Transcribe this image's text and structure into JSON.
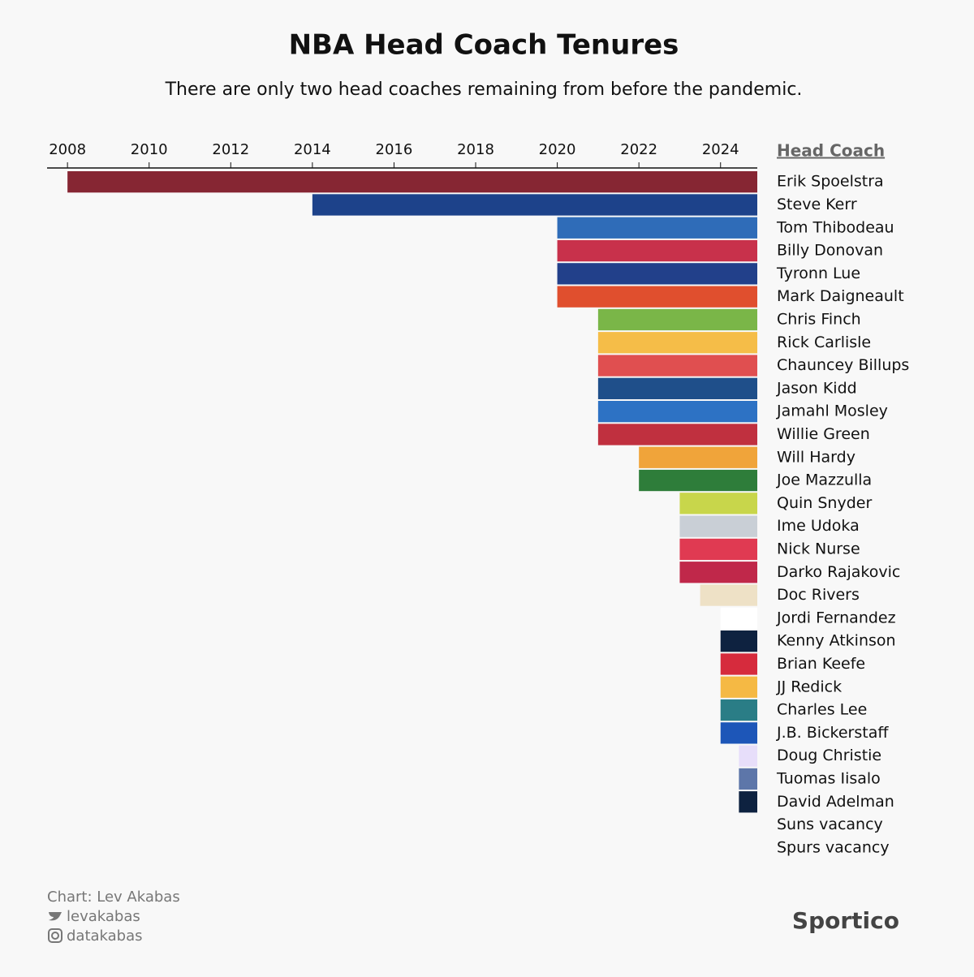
{
  "chart_data": {
    "type": "floating-bar",
    "title": "NBA Head Coach Tenures",
    "subtitle": "There are only two head coaches remaining from before the pandemic.",
    "legend_title": "Head Coach",
    "categories": [
      "Erik Spoelstra",
      "Steve Kerr",
      "Tom Thibodeau",
      "Billy Donovan",
      "Tyronn Lue",
      "Mark Daigneault",
      "Chris Finch",
      "Rick Carlisle",
      "Chauncey Billups",
      "Jason Kidd",
      "Jamahl Mosley",
      "Willie Green",
      "Will Hardy",
      "Joe Mazzulla",
      "Quin Snyder",
      "Ime Udoka",
      "Nick Nurse",
      "Darko Rajakovic",
      "Doc Rivers",
      "Jordi Fernandez",
      "Kenny Atkinson",
      "Brian Keefe",
      "JJ Redick",
      "Charles Lee",
      "J.B. Bickerstaff",
      "Doug Christie",
      "Tuomas Iisalo",
      "David Adelman",
      "Suns vacancy",
      "Spurs vacancy"
    ],
    "start": [
      2008,
      2014,
      2020,
      2020,
      2020,
      2020,
      2021,
      2021,
      2021,
      2021,
      2021,
      2021,
      2022,
      2022,
      2023,
      2023,
      2023,
      2023,
      2023.5,
      2024,
      2024,
      2024,
      2024,
      2024,
      2024,
      2024.45,
      2024.45,
      2024.45,
      2024.9,
      2024.9
    ],
    "end": [
      2024.9,
      2024.9,
      2024.9,
      2024.9,
      2024.9,
      2024.9,
      2024.9,
      2024.9,
      2024.9,
      2024.9,
      2024.9,
      2024.9,
      2024.9,
      2024.9,
      2024.9,
      2024.9,
      2024.9,
      2024.9,
      2024.9,
      2024.9,
      2024.9,
      2024.9,
      2024.9,
      2024.9,
      2024.9,
      2024.9,
      2024.9,
      2024.9,
      2024.9,
      2024.9
    ],
    "colors": [
      "#862633",
      "#1d428a",
      "#2f6cb8",
      "#c8314b",
      "#22408a",
      "#e04f2e",
      "#7ab648",
      "#f5bd48",
      "#e04f50",
      "#1f4f8a",
      "#2d72c4",
      "#c0303f",
      "#f0a43a",
      "#2e7d3a",
      "#c8d64b",
      "#c9cfd6",
      "#e03a52",
      "#c0284a",
      "#eee1c6",
      "#ffffff",
      "#0e2240",
      "#d62b3d",
      "#f5b944",
      "#2a7d86",
      "#1d56b8",
      "#e7defa",
      "#5d76a9",
      "#0e2240",
      "#f8f8f8",
      "#f8f8f8"
    ],
    "xlim": [
      2007.5,
      2024.9
    ],
    "xticks": [
      2008,
      2010,
      2012,
      2014,
      2016,
      2018,
      2020,
      2022,
      2024
    ],
    "credit": "Chart: Lev Akabas",
    "twitter": "levakabas",
    "instagram": "datakabas",
    "brand": "Sportico"
  }
}
